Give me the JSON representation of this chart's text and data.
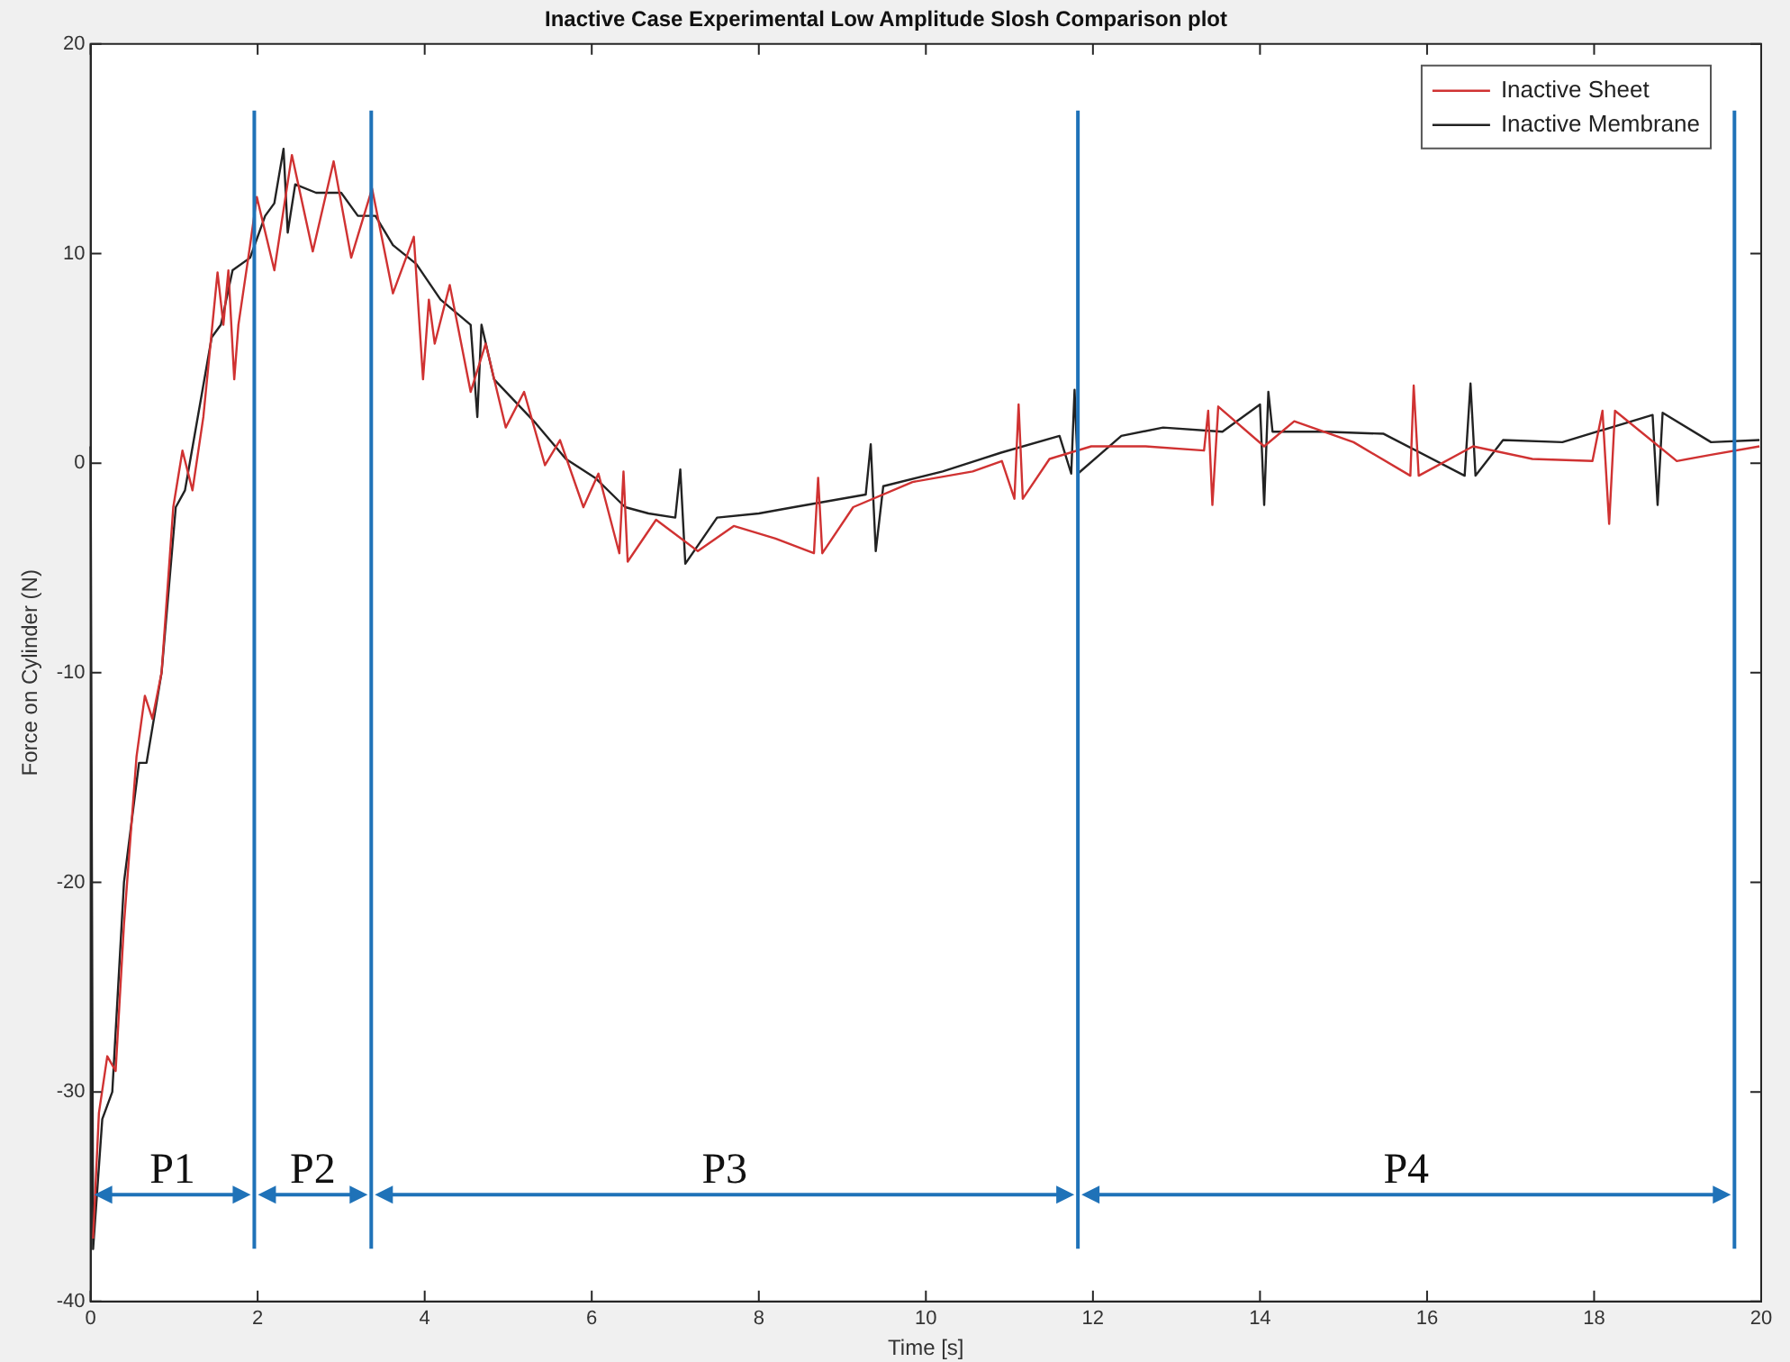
{
  "chart_data": {
    "type": "line",
    "title": "Inactive Case Experimental Low Amplitude Slosh Comparison plot",
    "xlabel": "Time [s]",
    "ylabel": "Force on Cylinder (N)",
    "xlim": [
      0,
      20
    ],
    "xticks": [
      0,
      2,
      4,
      6,
      8,
      10,
      12,
      14,
      16,
      18,
      20
    ],
    "ylim": [
      -40,
      20
    ],
    "yticks": [
      -40,
      -30,
      -20,
      -10,
      0,
      10,
      20
    ],
    "grid": false,
    "legend": "top right",
    "marker": "none",
    "line_style": "solid",
    "series": [
      {
        "name": "Inactive Sheet",
        "color": "#d03232",
        "x": [
          0.03,
          0.1,
          0.2,
          0.3,
          0.4,
          0.55,
          0.65,
          0.74,
          0.85,
          0.99,
          1.1,
          1.22,
          1.35,
          1.52,
          1.59,
          1.65,
          1.72,
          1.77,
          1.91,
          1.99,
          2.2,
          2.41,
          2.66,
          2.91,
          3.12,
          3.37,
          3.62,
          3.87,
          3.98,
          4.05,
          4.12,
          4.3,
          4.55,
          4.73,
          4.97,
          5.19,
          5.44,
          5.62,
          5.9,
          6.08,
          6.33,
          6.38,
          6.43,
          6.77,
          7.27,
          7.7,
          8.2,
          8.66,
          8.71,
          8.76,
          9.13,
          9.84,
          10.56,
          10.91,
          11.06,
          11.11,
          11.16,
          11.48,
          11.98,
          12.63,
          13.33,
          13.38,
          13.43,
          13.5,
          14.05,
          14.41,
          15.12,
          15.8,
          15.84,
          15.9,
          16.55,
          17.26,
          17.98,
          18.1,
          18.18,
          18.25,
          18.99,
          19.4,
          19.98
        ],
        "values": [
          -37,
          -31,
          -28.3,
          -29,
          -22,
          -14,
          -11.1,
          -12.2,
          -10,
          -2.1,
          0.6,
          -1.3,
          2.2,
          9.1,
          6.6,
          9.2,
          4,
          6.6,
          10.4,
          12.7,
          9.2,
          14.7,
          10.1,
          14.4,
          9.8,
          13.1,
          8.1,
          10.8,
          4,
          7.8,
          5.7,
          8.5,
          3.4,
          5.7,
          1.7,
          3.4,
          -0.1,
          1.1,
          -2.1,
          -0.5,
          -4.3,
          -0.4,
          -4.7,
          -2.7,
          -4.2,
          -3,
          -3.6,
          -4.3,
          -0.7,
          -4.3,
          -2.1,
          -0.9,
          -0.4,
          0.1,
          -1.7,
          2.8,
          -1.7,
          0.2,
          0.8,
          0.8,
          0.6,
          2.5,
          -2,
          2.7,
          0.8,
          2,
          1,
          -0.6,
          3.7,
          -0.6,
          0.8,
          0.2,
          0.1,
          2.5,
          -2.9,
          2.5,
          0.1,
          0.4,
          0.8
        ]
      },
      {
        "name": "Inactive Membrane",
        "color": "#222222",
        "x": [
          0,
          0.03,
          0.14,
          0.26,
          0.4,
          0.58,
          0.67,
          0.85,
          1.02,
          1.13,
          1.45,
          1.56,
          1.7,
          1.91,
          2.09,
          2.2,
          2.31,
          2.36,
          2.45,
          2.7,
          3.0,
          3.2,
          3.41,
          3.62,
          3.9,
          4.19,
          4.55,
          4.63,
          4.68,
          4.83,
          5.33,
          5.69,
          6.04,
          6.4,
          6.68,
          7.0,
          7.06,
          7.12,
          7.5,
          8.0,
          8.42,
          9.28,
          9.34,
          9.4,
          9.49,
          10.2,
          10.9,
          11.6,
          11.74,
          11.78,
          11.82,
          12.34,
          12.84,
          13.55,
          14.0,
          14.05,
          14.1,
          14.15,
          14.77,
          15.48,
          16.45,
          16.52,
          16.58,
          16.91,
          17.62,
          18.7,
          18.76,
          18.82,
          19.4,
          19.98
        ],
        "values": [
          0.8,
          -37.5,
          -31.3,
          -30,
          -20,
          -14.3,
          -14.3,
          -10,
          -2.1,
          -1.3,
          6,
          6.6,
          9.2,
          9.8,
          11.8,
          12.4,
          15,
          11,
          13.3,
          12.9,
          12.9,
          11.8,
          11.8,
          10.4,
          9.5,
          7.8,
          6.6,
          2.2,
          6.6,
          4,
          1.9,
          0.2,
          -0.7,
          -2.1,
          -2.4,
          -2.6,
          -0.3,
          -4.8,
          -2.6,
          -2.4,
          -2.1,
          -1.5,
          0.9,
          -4.2,
          -1.1,
          -0.4,
          0.5,
          1.3,
          -0.5,
          3.5,
          -0.5,
          1.3,
          1.7,
          1.5,
          2.8,
          -2,
          3.4,
          1.5,
          1.5,
          1.4,
          -0.6,
          3.8,
          -0.6,
          1.1,
          1,
          2.3,
          -2,
          2.4,
          1,
          1.1
        ]
      }
    ],
    "ref_lines": [
      {
        "axis": "x",
        "value": 1.96,
        "color": "#1f72b8"
      },
      {
        "axis": "x",
        "value": 3.36,
        "color": "#1f72b8"
      },
      {
        "axis": "x",
        "value": 11.82,
        "color": "#1f72b8"
      },
      {
        "axis": "x",
        "value": 19.68,
        "color": "#1f72b8"
      }
    ],
    "annotations": [
      "P1",
      "P2",
      "P3",
      "P4"
    ]
  }
}
